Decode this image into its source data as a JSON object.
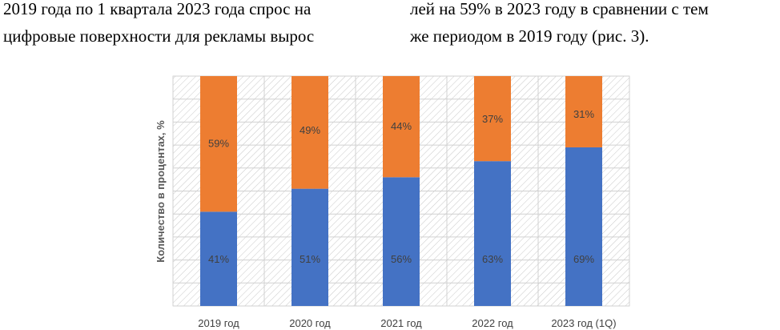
{
  "body_text": {
    "left_lines": [
      "2019 года по 1 квартала 2023 года спрос на",
      "цифровые поверхности для рекламы вырос"
    ],
    "right_lines": [
      "лей на 59% в 2023 году в сравнении с тем",
      "же периодом в 2019 году (рис. 3)."
    ]
  },
  "colors": {
    "blue": "#4472C4",
    "orange": "#ED7D31",
    "label_text": "#404040",
    "hatch": "#bfbfbf"
  },
  "chart_data": {
    "type": "bar",
    "stacked": true,
    "percent": true,
    "categories": [
      "2019 год",
      "2020 год",
      "2021 год",
      "2022 год",
      "2023 год (1Q)"
    ],
    "series": [
      {
        "values": [
          41,
          51,
          56,
          63,
          69
        ],
        "labels": [
          "41%",
          "51%",
          "56%",
          "63%",
          "69%"
        ],
        "color": "#4472C4"
      },
      {
        "values": [
          59,
          49,
          44,
          37,
          31
        ],
        "labels": [
          "59%",
          "49%",
          "44%",
          "37%",
          "31%"
        ],
        "color": "#ED7D31"
      }
    ],
    "ylabel": "Количество в процентах, %",
    "ylim": [
      0,
      100
    ],
    "grid": true,
    "legend": "none"
  }
}
